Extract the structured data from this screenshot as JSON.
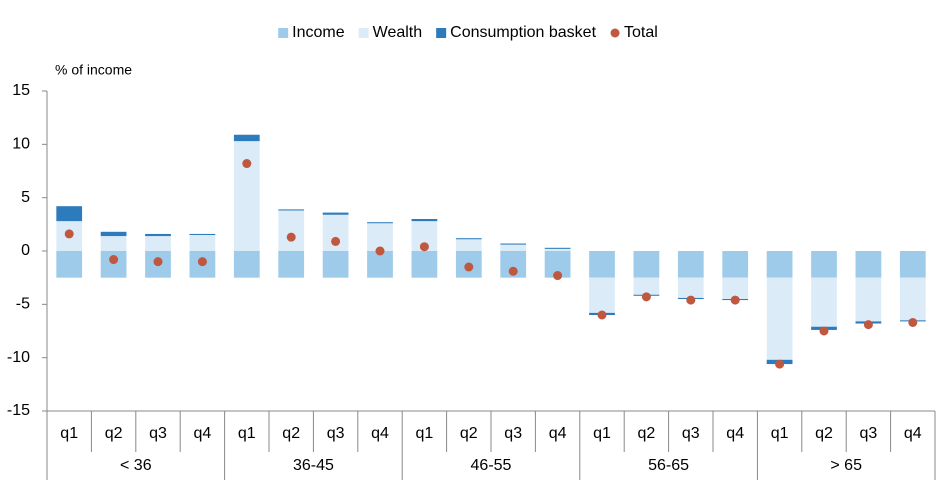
{
  "chart_data": {
    "type": "bar",
    "stacked": true,
    "y_label": "% of income",
    "categories": [
      "q1",
      "q2",
      "q3",
      "q4",
      "q1",
      "q2",
      "q3",
      "q4",
      "q1",
      "q2",
      "q3",
      "q4",
      "q1",
      "q2",
      "q3",
      "q4",
      "q1",
      "q2",
      "q3",
      "q4"
    ],
    "groups": [
      "< 36",
      "36-45",
      "46-55",
      "56-65",
      "> 65"
    ],
    "series": [
      {
        "name": "Income",
        "color": "#9dcbe9",
        "values": [
          -2.5,
          -2.5,
          -2.5,
          -2.5,
          -2.5,
          -2.5,
          -2.5,
          -2.5,
          -2.5,
          -2.5,
          -2.5,
          -2.5,
          -2.5,
          -2.5,
          -2.5,
          -2.5,
          -2.5,
          -2.5,
          -2.5,
          -2.5
        ]
      },
      {
        "name": "Wealth",
        "color": "#dcebf8",
        "values": [
          2.8,
          1.4,
          1.4,
          1.5,
          10.3,
          3.8,
          3.4,
          2.6,
          2.8,
          1.1,
          0.6,
          0.2,
          -3.3,
          -1.6,
          -1.9,
          -2.0,
          -7.7,
          -4.6,
          -4.1,
          -4.0
        ]
      },
      {
        "name": "Consumption basket",
        "color": "#2b7bbd",
        "values": [
          1.4,
          0.4,
          0.2,
          0.1,
          0.6,
          0.1,
          0.2,
          0.1,
          0.2,
          0.1,
          0.1,
          0.1,
          -0.2,
          -0.1,
          -0.1,
          -0.1,
          -0.4,
          -0.3,
          -0.2,
          -0.1
        ]
      },
      {
        "name": "Total",
        "color": "#c0573f",
        "kind": "scatter",
        "values": [
          1.6,
          -0.8,
          -1.0,
          -1.0,
          8.2,
          1.3,
          0.9,
          0.0,
          0.4,
          -1.5,
          -1.9,
          -2.3,
          -6.0,
          -4.3,
          -4.6,
          -4.6,
          -10.6,
          -7.5,
          -6.9,
          -6.7
        ]
      }
    ],
    "ylim": [
      -15,
      15
    ],
    "yticks": [
      -15,
      -10,
      -5,
      0,
      5,
      10,
      15
    ],
    "legend": "top",
    "grid": false
  }
}
